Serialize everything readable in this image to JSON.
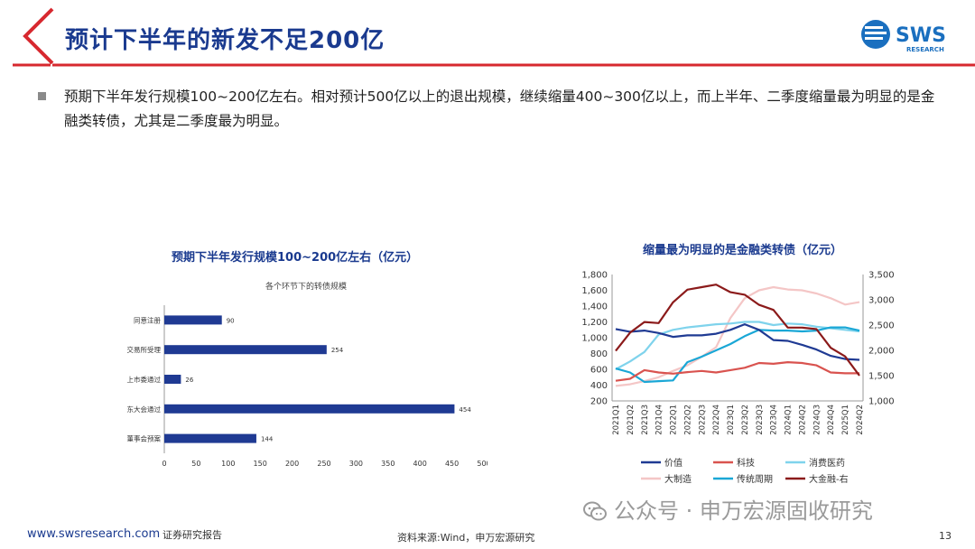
{
  "header": {
    "title": "预计下半年的新发不足200亿",
    "logo_text": "SWS",
    "logo_sub": "RESEARCH"
  },
  "body": {
    "bullet": "预期下半年发行规模100~200亿左右。相对预计500亿以上的退出规模，继续缩量400~300亿以上，而上半年、二季度缩量最为明显的是金融类转债，尤其是二季度最为明显。"
  },
  "colors": {
    "brand_red": "#d7282f",
    "brand_blue": "#1a3a8f",
    "bar_blue": "#1f3a93"
  },
  "chart_data": [
    {
      "type": "bar",
      "orientation": "horizontal",
      "title": "预期下半年发行规模100~200亿左右（亿元）",
      "subtitle": "各个环节下的转债规模",
      "categories": [
        "同意注册",
        "交易所受理",
        "上市委通过",
        "股东大会通过",
        "董事会预案"
      ],
      "values": [
        90,
        254,
        26,
        454,
        144
      ],
      "xlim": [
        0,
        500
      ],
      "xticks": [
        0,
        50,
        100,
        150,
        200,
        250,
        300,
        350,
        400,
        450,
        500
      ]
    },
    {
      "type": "line",
      "title": "缩量最为明显的是金融类转债（亿元）",
      "categories": [
        "2021Q1",
        "2021Q2",
        "2021Q3",
        "2021Q4",
        "2022Q1",
        "2022Q2",
        "2022Q3",
        "2022Q4",
        "2023Q1",
        "2023Q2",
        "2023Q3",
        "2023Q4",
        "2024Q1",
        "2024Q2",
        "2024Q3",
        "2024Q4",
        "2025Q1",
        "2024Q2"
      ],
      "y_left": {
        "ylim": [
          200,
          1800
        ],
        "ticks": [
          "200",
          "400",
          "600",
          "800",
          "1,000",
          "1,200",
          "1,400",
          "1,600",
          "1,800"
        ]
      },
      "y_right": {
        "ylim": [
          1000,
          3500
        ],
        "ticks": [
          "1,000",
          "1,500",
          "2,000",
          "2,500",
          "3,000",
          "3,500"
        ]
      },
      "series": [
        {
          "name": "价值",
          "color": "#1f3a93",
          "axis": "left",
          "values": [
            1110,
            1075,
            1090,
            1060,
            1010,
            1030,
            1030,
            1050,
            1100,
            1170,
            1100,
            970,
            960,
            910,
            850,
            770,
            730,
            720
          ]
        },
        {
          "name": "科技",
          "color": "#d9534f",
          "axis": "left",
          "values": [
            455,
            480,
            590,
            560,
            545,
            565,
            580,
            560,
            590,
            620,
            680,
            670,
            690,
            680,
            650,
            560,
            550,
            550
          ]
        },
        {
          "name": "消费医药",
          "color": "#7fd3ec",
          "axis": "left",
          "values": [
            600,
            700,
            820,
            1040,
            1100,
            1130,
            1150,
            1170,
            1180,
            1200,
            1200,
            1160,
            1180,
            1170,
            1140,
            1120,
            1100,
            1080
          ]
        },
        {
          "name": "大制造",
          "color": "#f4c6c6",
          "axis": "left",
          "values": [
            390,
            410,
            450,
            500,
            580,
            650,
            760,
            880,
            1250,
            1500,
            1600,
            1640,
            1610,
            1600,
            1560,
            1500,
            1420,
            1450
          ]
        },
        {
          "name": "传统周期",
          "color": "#1aa7d6",
          "axis": "left",
          "values": [
            610,
            560,
            440,
            450,
            460,
            690,
            760,
            840,
            920,
            1020,
            1100,
            1090,
            1090,
            1080,
            1090,
            1130,
            1130,
            1090
          ]
        },
        {
          "name": "大金融-右",
          "color": "#8b1a1a",
          "axis": "right",
          "values": [
            1990,
            2350,
            2560,
            2540,
            2950,
            3200,
            3250,
            3300,
            3150,
            3100,
            2900,
            2800,
            2450,
            2450,
            2420,
            2050,
            1880,
            1500
          ]
        }
      ]
    }
  ],
  "footer": {
    "url": "www.swsresearch.com",
    "report_type": "证券研究报告",
    "source": "资料来源:Wind，申万宏源研究",
    "page": "13",
    "watermark": "公众号 · 申万宏源固收研究"
  }
}
